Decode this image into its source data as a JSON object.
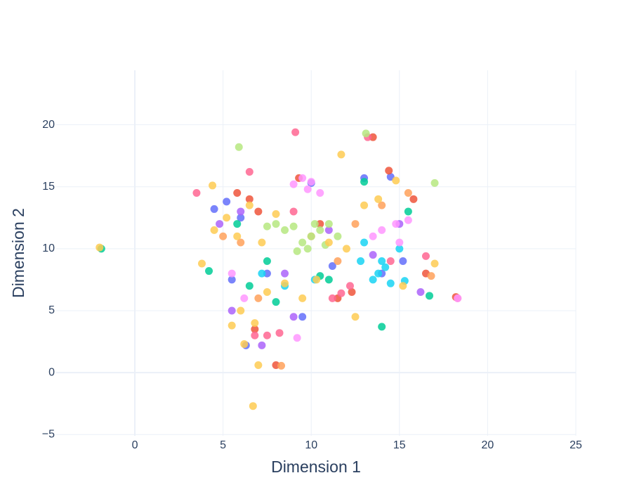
{
  "chart_data": {
    "type": "scatter",
    "x_label": "Dimension 1",
    "y_label": "Dimension 2",
    "xlim": [
      -4.46,
      25
    ],
    "ylim": [
      -5.1,
      24.4
    ],
    "xticks": [
      0,
      5,
      10,
      15,
      20,
      25
    ],
    "yticks": [
      {
        "value": -5,
        "label": "−5"
      },
      0,
      5,
      10,
      15,
      20
    ],
    "grid": true,
    "series": [
      {
        "color": "#636efa",
        "x": [
          4.5,
          5.2,
          6.0,
          13.0,
          14.5,
          10.0,
          11.2,
          6.3,
          9.5,
          7.5,
          14.0,
          15.2,
          5.5
        ],
        "values": [
          13.2,
          13.8,
          12.5,
          15.7,
          15.8,
          15.3,
          8.6,
          2.2,
          4.5,
          8.0,
          8.0,
          9.0,
          7.5
        ]
      },
      {
        "color": "#EF553B",
        "x": [
          5.8,
          6.5,
          7.0,
          9.3,
          10.5,
          11.5,
          13.5,
          14.4,
          15.8,
          16.5,
          18.2,
          6.8,
          12.3,
          8.0
        ],
        "values": [
          14.5,
          14.0,
          13.0,
          15.7,
          12.0,
          6.0,
          19.0,
          16.3,
          14.0,
          8.0,
          6.1,
          3.5,
          6.5,
          0.6
        ]
      },
      {
        "color": "#00cc96",
        "x": [
          4.2,
          -1.9,
          5.8,
          6.5,
          8.0,
          10.5,
          11.0,
          13.0,
          14.0,
          15.5,
          16.7,
          7.5
        ],
        "values": [
          8.2,
          10.0,
          12.0,
          7.0,
          5.7,
          7.8,
          7.5,
          15.4,
          3.7,
          13.0,
          6.2,
          9.0
        ]
      },
      {
        "color": "#ab63fa",
        "x": [
          4.8,
          6.0,
          7.2,
          9.0,
          11.0,
          13.5,
          15.0,
          16.2,
          5.5,
          8.5
        ],
        "values": [
          12.0,
          13.0,
          2.2,
          4.5,
          11.5,
          9.5,
          12.0,
          6.5,
          5.0,
          8.0
        ]
      },
      {
        "color": "#FFA15A",
        "x": [
          6.0,
          8.3,
          10.0,
          12.5,
          14.0,
          15.5,
          16.8,
          7.0,
          5.0,
          11.5
        ],
        "values": [
          10.5,
          0.55,
          11.0,
          12.0,
          13.5,
          14.5,
          7.8,
          6.0,
          11.0,
          9.0
        ]
      },
      {
        "color": "#19d3f3",
        "x": [
          13.0,
          13.5,
          14.0,
          14.5,
          15.0,
          13.8,
          12.8,
          15.3,
          14.2,
          8.5,
          7.2,
          10.2
        ],
        "values": [
          10.5,
          7.5,
          9.0,
          7.2,
          10.0,
          8.0,
          9.0,
          7.4,
          8.5,
          7.0,
          8.0,
          7.5
        ]
      },
      {
        "color": "#FF6692",
        "x": [
          3.5,
          6.5,
          9.1,
          11.7,
          11.2,
          12.2,
          6.8,
          7.5,
          8.2,
          13.2,
          14.5,
          16.5,
          18.3,
          9.0
        ],
        "values": [
          14.5,
          16.2,
          19.4,
          6.4,
          6.0,
          7.0,
          3.0,
          3.0,
          3.2,
          19.0,
          9.0,
          9.4,
          6.0,
          13.0
        ]
      },
      {
        "color": "#B6E880",
        "x": [
          8.5,
          9.0,
          9.5,
          10.0,
          10.5,
          11.0,
          11.5,
          9.2,
          10.8,
          8.0,
          7.5,
          17.0,
          13.1,
          5.9,
          9.8,
          10.2
        ],
        "values": [
          11.5,
          11.8,
          10.5,
          11.0,
          11.5,
          12.0,
          11.0,
          9.8,
          10.3,
          12.0,
          11.8,
          15.3,
          19.3,
          18.2,
          10.0,
          12.0
        ]
      },
      {
        "color": "#FF97FF",
        "x": [
          9.0,
          9.5,
          10.0,
          10.5,
          9.8,
          14.0,
          14.8,
          15.5,
          13.5,
          5.5,
          6.2,
          9.2,
          15.0,
          18.3
        ],
        "values": [
          15.2,
          15.7,
          15.4,
          14.5,
          14.8,
          11.5,
          12.0,
          12.3,
          11.0,
          8.0,
          6.0,
          2.8,
          10.5,
          6.0
        ]
      },
      {
        "color": "#FECB52",
        "x": [
          -2.0,
          3.8,
          4.4,
          5.2,
          5.8,
          6.5,
          7.2,
          8.0,
          6.0,
          6.8,
          7.5,
          8.5,
          9.5,
          10.3,
          12.0,
          13.0,
          13.8,
          14.8,
          15.2,
          6.7,
          7.0,
          11.7,
          17.0,
          12.5,
          11.0,
          5.5,
          6.2,
          4.5
        ],
        "values": [
          10.1,
          8.8,
          15.1,
          12.5,
          11.0,
          13.5,
          10.5,
          12.8,
          5.0,
          4.0,
          6.5,
          7.2,
          6.0,
          7.5,
          10.0,
          13.5,
          14.0,
          15.5,
          7.0,
          -2.7,
          0.6,
          17.6,
          8.8,
          4.5,
          10.5,
          3.8,
          2.3,
          11.5
        ]
      }
    ]
  }
}
